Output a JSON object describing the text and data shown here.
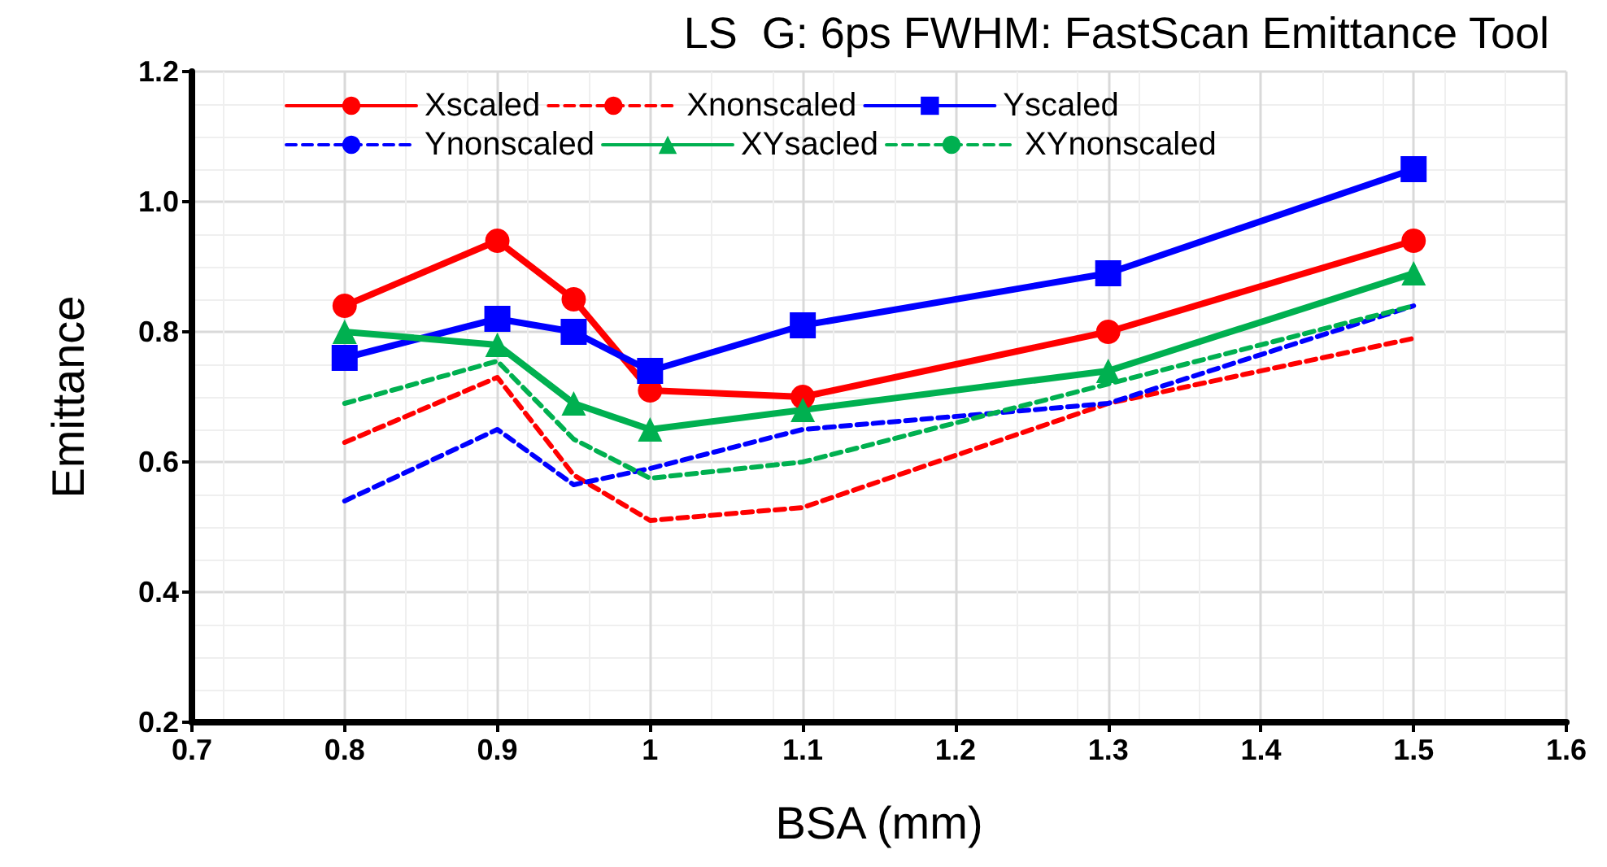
{
  "chart_data": {
    "type": "line",
    "title": "LS  G: 6ps FWHM: FastScan Emittance Tool",
    "xlabel": "BSA (mm)",
    "ylabel": "Emittance",
    "x": [
      0.8,
      0.9,
      0.95,
      1.0,
      1.1,
      1.3,
      1.5
    ],
    "series": [
      {
        "name": "Xscaled",
        "color": "#ff0000",
        "marker": "circle",
        "line_style": "solid",
        "values": [
          0.84,
          0.94,
          0.85,
          0.71,
          0.7,
          0.8,
          0.94
        ]
      },
      {
        "name": "Xnonscaled",
        "color": "#ff0000",
        "marker": "none",
        "line_style": "dashed",
        "values": [
          0.63,
          0.73,
          0.58,
          0.51,
          0.53,
          0.69,
          0.79
        ]
      },
      {
        "name": "Yscaled",
        "color": "#0000ff",
        "marker": "square",
        "line_style": "solid",
        "values": [
          0.76,
          0.82,
          0.8,
          0.74,
          0.81,
          0.89,
          1.05
        ]
      },
      {
        "name": "Ynonscaled",
        "color": "#0000ff",
        "marker": "none",
        "line_style": "dashed",
        "values": [
          0.54,
          0.65,
          0.565,
          0.59,
          0.65,
          0.69,
          0.84
        ]
      },
      {
        "name": "XYsacled",
        "color": "#00b050",
        "marker": "triangle",
        "line_style": "solid",
        "values": [
          0.8,
          0.78,
          0.69,
          0.65,
          0.68,
          0.74,
          0.89
        ]
      },
      {
        "name": "XYnonscaled",
        "color": "#00b050",
        "marker": "none",
        "line_style": "dashed",
        "values": [
          0.69,
          0.755,
          0.635,
          0.575,
          0.6,
          0.72,
          0.84
        ]
      }
    ],
    "xlim": [
      0.7,
      1.6
    ],
    "xticks": [
      0.7,
      0.8,
      0.9,
      1,
      1.1,
      1.2,
      1.3,
      1.4,
      1.5,
      1.6
    ],
    "ylim": [
      0.2,
      1.2
    ],
    "yticks": [
      {
        "value": 0.2,
        "label": "0.2"
      },
      {
        "value": 0.4,
        "label": "0.4"
      },
      {
        "value": 0.6,
        "label": "0.6"
      },
      {
        "value": 0.8,
        "label": "0.8"
      },
      {
        "value": 1.0,
        "label": "1.0"
      },
      {
        "value": 1.2,
        "label": "1.2"
      }
    ],
    "grid": true,
    "legend": "top left"
  }
}
